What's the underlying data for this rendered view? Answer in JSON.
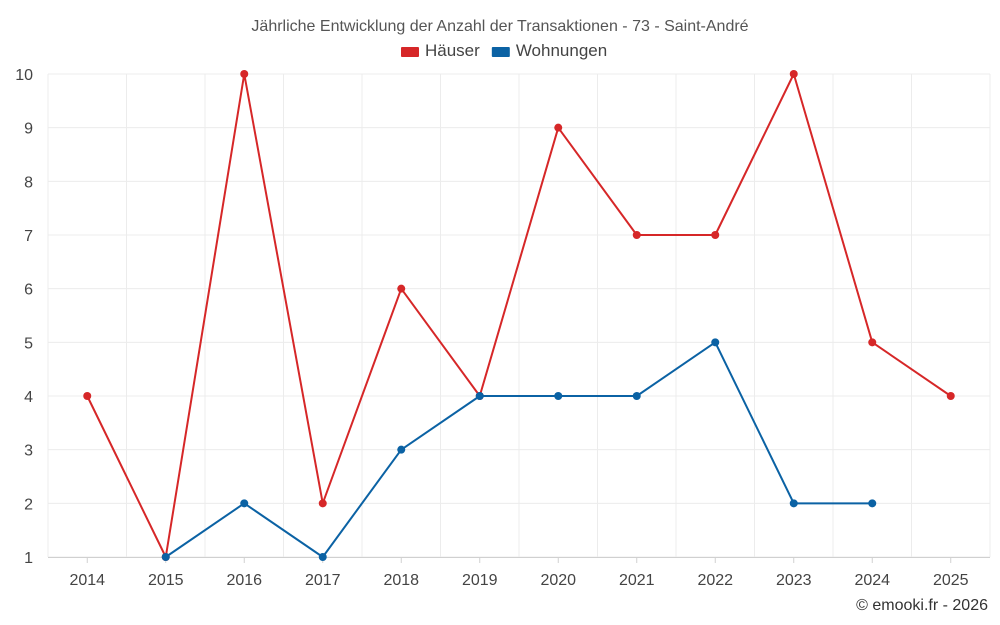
{
  "chart_data": {
    "type": "line",
    "title": "Jährliche Entwicklung der Anzahl der Transaktionen - 73 - Saint-André",
    "categories": [
      "2014",
      "2015",
      "2016",
      "2017",
      "2018",
      "2019",
      "2020",
      "2021",
      "2022",
      "2023",
      "2024",
      "2025"
    ],
    "series": [
      {
        "name": "Häuser",
        "color": "#d62728",
        "values": [
          4,
          1,
          10,
          2,
          6,
          4,
          9,
          7,
          7,
          10,
          5,
          4
        ]
      },
      {
        "name": "Wohnungen",
        "color": "#0b62a4",
        "values": [
          null,
          1,
          2,
          1,
          3,
          4,
          4,
          4,
          5,
          2,
          2,
          null
        ]
      }
    ],
    "yticks": [
      1,
      2,
      3,
      4,
      5,
      6,
      7,
      8,
      9,
      10
    ],
    "ylim": [
      1,
      10
    ],
    "xlabel": "",
    "ylabel": "",
    "legend": "top-center",
    "grid": true
  },
  "credit": "© emooki.fr - 2026"
}
